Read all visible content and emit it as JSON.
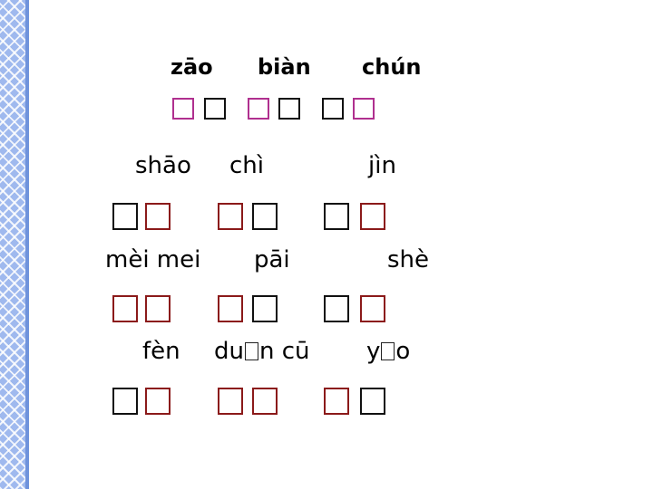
{
  "colors": {
    "border_strip": "#9fb9ee",
    "magenta": "#b0308f",
    "dark_red": "#8b1a1a",
    "black": "#111111"
  },
  "rows": [
    {
      "pinyin": [
        "zāo",
        "biàn",
        "chún"
      ],
      "box_colors": [
        "#b0308f",
        "#111111",
        "#b0308f",
        "#111111",
        "#111111",
        "#b0308f"
      ]
    },
    {
      "pinyin": [
        "shāo",
        "chì",
        "jìn"
      ],
      "box_colors": [
        "#111111",
        "#8b1a1a",
        "#8b1a1a",
        "#111111",
        "#111111",
        "#8b1a1a"
      ]
    },
    {
      "pinyin": [
        "mèi mei",
        "pāi",
        "shè"
      ],
      "box_colors": [
        "#8b1a1a",
        "#8b1a1a",
        "#8b1a1a",
        "#111111",
        "#111111",
        "#8b1a1a"
      ]
    },
    {
      "pinyin": [
        "fèn",
        "duān cū",
        "yāo"
      ],
      "box_colors": [
        "#111111",
        "#8b1a1a",
        "#8b1a1a",
        "#8b1a1a",
        "#8b1a1a",
        "#111111"
      ]
    }
  ],
  "row4_parts": {
    "duan_pre": "du",
    "duan_post": "n cū",
    "yao_pre": "y",
    "yao_post": "o"
  }
}
